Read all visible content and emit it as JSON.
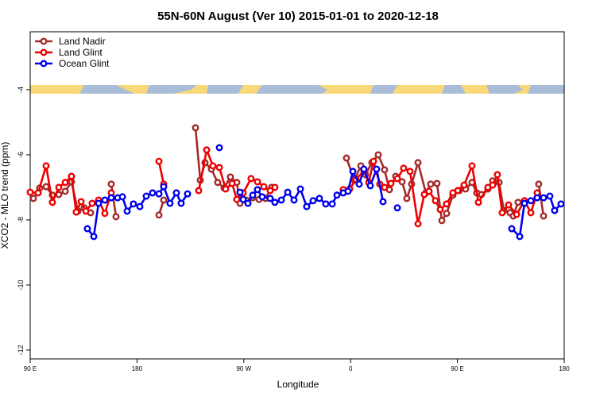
{
  "chart_data": {
    "type": "line",
    "title": "55N-60N August (Ver 10)   2015-01-01 to 2020-12-18",
    "x_label": "Longitude",
    "y_label": "XCO2 - MLO trend (ppm)",
    "xlim": [
      90,
      540
    ],
    "ylim": [
      -12.27,
      -2.22
    ],
    "xticks": [
      {
        "value": 90,
        "label": "90 E"
      },
      {
        "value": 180,
        "label": "180"
      },
      {
        "value": 270,
        "label": "90 W"
      },
      {
        "value": 360,
        "label": "0"
      },
      {
        "value": 450,
        "label": "90 E"
      },
      {
        "value": 540,
        "label": "180"
      }
    ],
    "yticks": [
      -12,
      -10,
      -8,
      -6,
      -4
    ],
    "legend": "top-left",
    "grid": false,
    "series": [
      {
        "name": "Land Nadir",
        "color": "#a52a2a",
        "x": [
          92.7,
          98.0,
          103.4,
          108.7,
          114.1,
          119.5,
          124.8,
          130.2,
          135.5,
          140.9,
          null,
          158.3,
          162.3,
          null,
          198.5,
          202.5,
          null,
          229.3,
          233.3,
          237.3,
          242.7,
          248.0,
          253.4,
          258.7,
          264.1,
          266.8,
          272.1,
          277.5,
          282.8,
          288.2,
          293.5,
          null,
          356.5,
          363.2,
          368.6,
          372.6,
          377.9,
          383.3,
          388.6,
          392.7,
          398.0,
          403.4,
          407.4,
          411.4,
          416.8,
          423.4,
          427.5,
          432.8,
          436.9,
          440.9,
          446.2,
          451.6,
          456.9,
          462.3,
          466.3,
          470.3,
          475.7,
          479.7,
          485.1,
          489.1,
          494.4,
          497.1,
          501.1,
          null,
          518.5,
          522.6
        ],
        "values": [
          -7.34,
          -7.02,
          -6.98,
          -7.24,
          -7.22,
          -7.12,
          -6.83,
          -7.73,
          -7.63,
          -7.78,
          null,
          -6.9,
          -7.9,
          null,
          -7.85,
          -7.39,
          null,
          -5.17,
          -6.78,
          -6.24,
          -6.44,
          -6.85,
          -7.02,
          -6.68,
          -6.85,
          -7.49,
          -7.39,
          -7.32,
          -7.37,
          -7.34,
          -7.0,
          null,
          -6.1,
          -6.78,
          -6.34,
          -6.61,
          -6.24,
          -6.0,
          -6.46,
          -7.07,
          -6.66,
          -6.83,
          -7.34,
          -6.9,
          -6.24,
          -7.17,
          -6.9,
          -6.88,
          -8.02,
          -7.8,
          -7.24,
          -7.1,
          -7.05,
          -6.85,
          -7.17,
          -7.22,
          -7.05,
          -6.8,
          -6.85,
          -7.71,
          -7.78,
          -7.88,
          -7.46,
          null,
          -6.9,
          -7.88
        ]
      },
      {
        "name": "Land Glint",
        "color": "#ee0000",
        "x": [
          90.0,
          96.7,
          103.4,
          108.7,
          114.1,
          119.5,
          124.8,
          128.8,
          132.9,
          136.9,
          142.2,
          147.6,
          152.9,
          158.3,
          null,
          198.5,
          202.5,
          null,
          232.0,
          238.7,
          244.0,
          249.4,
          254.7,
          260.1,
          264.1,
          269.5,
          276.1,
          281.5,
          286.9,
          292.2,
          296.2,
          null,
          353.8,
          359.2,
          364.5,
          371.2,
          375.3,
          379.3,
          384.6,
          388.6,
          394.0,
          399.4,
          404.7,
          410.1,
          416.8,
          422.1,
          426.1,
          431.5,
          435.5,
          440.9,
          446.2,
          450.3,
          455.6,
          462.3,
          467.7,
          475.7,
          479.7,
          483.7,
          487.7,
          493.1,
          499.9,
          506.5,
          511.9,
          517.2
        ],
        "values": [
          -7.15,
          -7.17,
          -6.34,
          -7.46,
          -7.0,
          -6.85,
          -6.66,
          -7.76,
          -7.44,
          -7.73,
          -7.49,
          -7.39,
          -7.8,
          -7.17,
          null,
          -6.2,
          -6.9,
          null,
          -7.1,
          -5.85,
          -6.34,
          -6.39,
          -7.05,
          -6.88,
          -7.37,
          -7.17,
          -6.73,
          -6.83,
          -6.98,
          -7.1,
          -7.0,
          null,
          -7.07,
          -7.05,
          -6.76,
          -6.49,
          -6.85,
          -6.2,
          -6.9,
          -7.0,
          -6.88,
          -6.73,
          -6.41,
          -6.51,
          -8.12,
          -7.22,
          -7.12,
          -7.41,
          -7.68,
          -7.51,
          -7.17,
          -7.1,
          -6.93,
          -6.34,
          -7.46,
          -7.0,
          -6.93,
          -6.61,
          -7.78,
          -7.54,
          -7.83,
          -7.41,
          -7.78,
          -7.17
        ]
      },
      {
        "name": "Ocean Glint",
        "color": "#0000ee",
        "x": [
          138.2,
          143.6,
          147.6,
          152.9,
          158.3,
          163.7,
          167.7,
          171.7,
          177.0,
          182.4,
          187.8,
          193.1,
          198.5,
          202.5,
          207.8,
          213.2,
          217.2,
          222.6,
          null,
          249.4,
          null,
          266.8,
          269.5,
          273.5,
          277.5,
          281.5,
          285.5,
          292.2,
          296.2,
          301.6,
          307.0,
          312.3,
          317.7,
          323.0,
          328.4,
          333.7,
          339.1,
          344.5,
          348.5,
          353.8,
          357.8,
          361.9,
          367.2,
          371.2,
          376.6,
          381.9,
          387.3,
          null,
          399.4,
          null,
          495.8,
          502.5,
          506.5,
          511.9,
          517.2,
          522.6,
          527.9,
          531.9,
          537.3
        ],
        "values": [
          -8.27,
          -8.51,
          -7.49,
          -7.39,
          -7.32,
          -7.32,
          -7.29,
          -7.73,
          -7.51,
          -7.59,
          -7.27,
          -7.17,
          -7.2,
          -6.98,
          -7.49,
          -7.17,
          -7.49,
          -7.2,
          null,
          -5.78,
          null,
          -7.15,
          -7.37,
          -7.49,
          -7.24,
          -7.07,
          -7.29,
          -7.34,
          -7.46,
          -7.39,
          -7.15,
          -7.39,
          -7.05,
          -7.59,
          -7.41,
          -7.34,
          -7.51,
          -7.51,
          -7.24,
          -7.17,
          -7.12,
          -6.51,
          -6.9,
          -6.44,
          -6.95,
          -6.44,
          -7.44,
          null,
          -7.63,
          null,
          -8.27,
          -8.51,
          -7.49,
          -7.41,
          -7.32,
          -7.32,
          -7.27,
          -7.71,
          -7.51
        ]
      }
    ]
  }
}
